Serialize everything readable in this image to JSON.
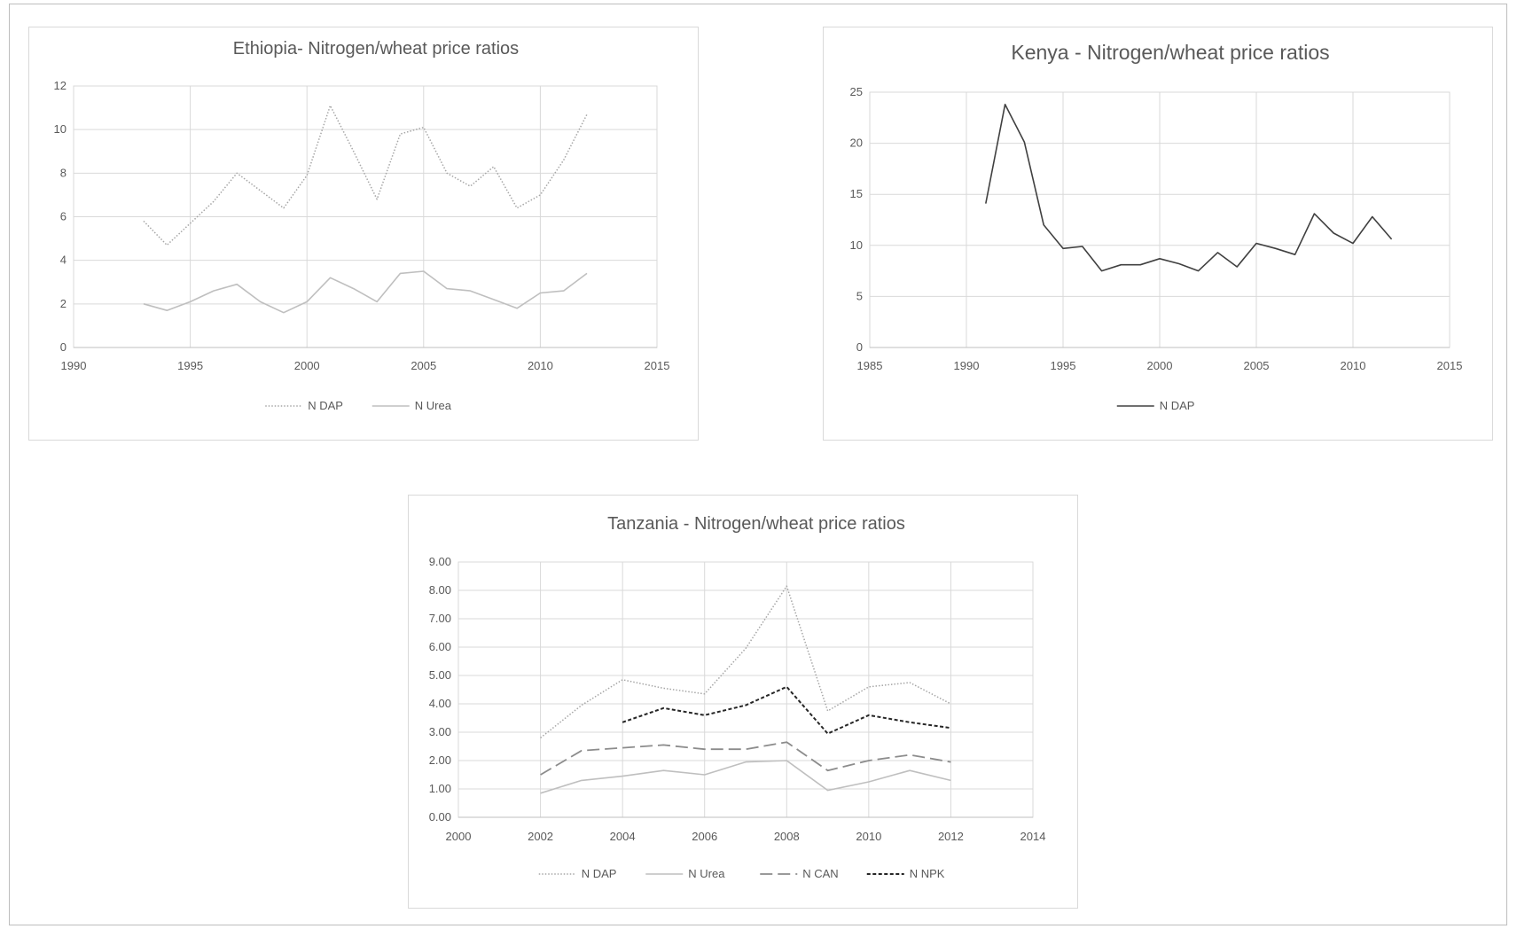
{
  "chart_data": [
    {
      "type": "line",
      "title": "Ethiopia- Nitrogen/wheat price ratios",
      "xlabel": "",
      "ylabel": "",
      "xlim": [
        1990,
        2015
      ],
      "ylim": [
        0,
        12
      ],
      "xticks": [
        "1990",
        "1995",
        "2000",
        "2005",
        "2010",
        "2015"
      ],
      "yticks": [
        "0",
        "2",
        "4",
        "6",
        "8",
        "10",
        "12"
      ],
      "grid": true,
      "legend": "bottom",
      "series": [
        {
          "name": "N DAP",
          "style": "dotted",
          "color": "#a6a6a6",
          "x": [
            1993,
            1994,
            1995,
            1996,
            1997,
            1998,
            1999,
            2000,
            2001,
            2002,
            2003,
            2004,
            2005,
            2006,
            2007,
            2008,
            2009,
            2010,
            2011,
            2012
          ],
          "y": [
            5.8,
            4.7,
            5.7,
            6.7,
            8.0,
            7.2,
            6.4,
            7.9,
            11.1,
            9.0,
            6.8,
            9.8,
            10.1,
            8.0,
            7.4,
            8.3,
            6.4,
            7.0,
            8.6,
            10.7
          ]
        },
        {
          "name": "N Urea",
          "style": "solid",
          "color": "#bfbfbf",
          "x": [
            1993,
            1994,
            1995,
            1996,
            1997,
            1998,
            1999,
            2000,
            2001,
            2002,
            2003,
            2004,
            2005,
            2006,
            2007,
            2008,
            2009,
            2010,
            2011,
            2012
          ],
          "y": [
            2.0,
            1.7,
            2.1,
            2.6,
            2.9,
            2.1,
            1.6,
            2.1,
            3.2,
            2.7,
            2.1,
            3.4,
            3.5,
            2.7,
            2.6,
            2.2,
            1.8,
            2.5,
            2.6,
            3.4
          ]
        }
      ]
    },
    {
      "type": "line",
      "title": "Kenya - Nitrogen/wheat price ratios",
      "xlabel": "",
      "ylabel": "",
      "xlim": [
        1985,
        2015
      ],
      "ylim": [
        0,
        25
      ],
      "xticks": [
        "1985",
        "1990",
        "1995",
        "2000",
        "2005",
        "2010",
        "2015"
      ],
      "yticks": [
        "0",
        "5",
        "10",
        "15",
        "20",
        "25"
      ],
      "grid": true,
      "legend": "bottom",
      "series": [
        {
          "name": "N DAP",
          "style": "solid",
          "color": "#404040",
          "x": [
            1991,
            1992,
            1993,
            1994,
            1995,
            1996,
            1997,
            1998,
            1999,
            2000,
            2001,
            2002,
            2003,
            2004,
            2005,
            2006,
            2007,
            2008,
            2009,
            2010,
            2011,
            2012
          ],
          "y": [
            14.1,
            23.8,
            20.1,
            12.0,
            9.7,
            9.9,
            7.5,
            8.1,
            8.1,
            8.7,
            8.2,
            7.5,
            9.3,
            7.9,
            10.2,
            9.7,
            9.1,
            13.1,
            11.2,
            10.2,
            12.8,
            10.6
          ]
        }
      ]
    },
    {
      "type": "line",
      "title": "Tanzania - Nitrogen/wheat price ratios",
      "xlabel": "",
      "ylabel": "",
      "xlim": [
        2000,
        2014
      ],
      "ylim": [
        0,
        9
      ],
      "xticks": [
        "2000",
        "2002",
        "2004",
        "2006",
        "2008",
        "2010",
        "2012",
        "2014"
      ],
      "yticks": [
        "0.00",
        "1.00",
        "2.00",
        "3.00",
        "4.00",
        "5.00",
        "6.00",
        "7.00",
        "8.00",
        "9.00"
      ],
      "grid": true,
      "legend": "bottom",
      "series": [
        {
          "name": "N DAP",
          "style": "dotted",
          "color": "#a6a6a6",
          "x": [
            2002,
            2003,
            2004,
            2005,
            2006,
            2007,
            2008,
            2009,
            2010,
            2011,
            2012
          ],
          "y": [
            2.8,
            3.95,
            4.85,
            4.55,
            4.35,
            5.95,
            8.15,
            3.75,
            4.6,
            4.75,
            4.0
          ]
        },
        {
          "name": "N Urea",
          "style": "solid",
          "color": "#bfbfbf",
          "x": [
            2002,
            2003,
            2004,
            2005,
            2006,
            2007,
            2008,
            2009,
            2010,
            2011,
            2012
          ],
          "y": [
            0.85,
            1.3,
            1.45,
            1.65,
            1.5,
            1.95,
            2.0,
            0.95,
            1.25,
            1.65,
            1.3
          ]
        },
        {
          "name": "N CAN",
          "style": "dashed",
          "color": "#8c8c8c",
          "x": [
            2002,
            2003,
            2004,
            2005,
            2006,
            2007,
            2008,
            2009,
            2010,
            2011,
            2012
          ],
          "y": [
            1.5,
            2.35,
            2.45,
            2.55,
            2.4,
            2.4,
            2.65,
            1.65,
            2.0,
            2.2,
            1.95
          ]
        },
        {
          "name": "N NPK",
          "style": "short-dashed",
          "color": "#262626",
          "x": [
            2004,
            2005,
            2006,
            2007,
            2008,
            2009,
            2010,
            2011,
            2012
          ],
          "y": [
            3.35,
            3.85,
            3.6,
            3.95,
            4.6,
            2.95,
            3.6,
            3.35,
            3.15
          ]
        }
      ]
    }
  ]
}
